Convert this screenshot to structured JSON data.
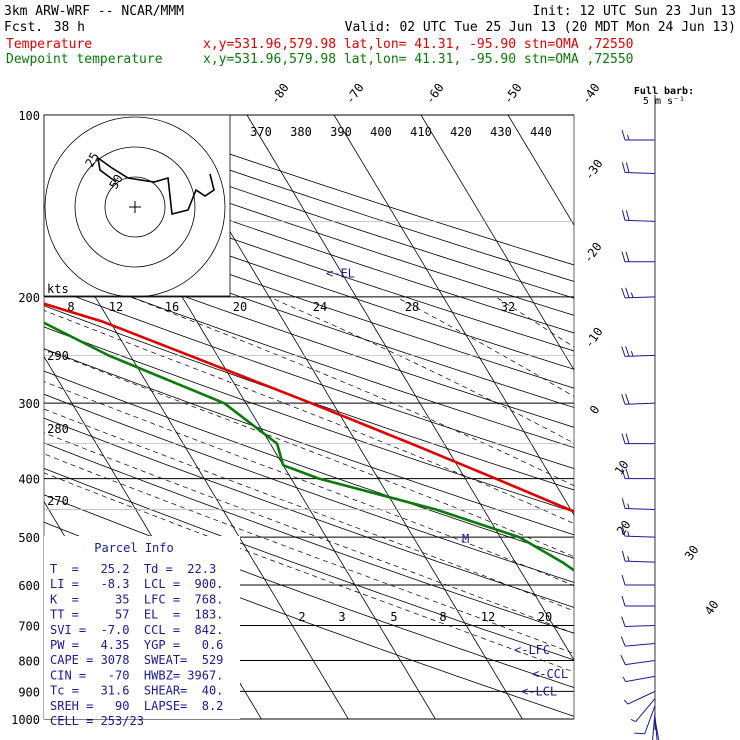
{
  "header": {
    "model": "3km ARW-WRF -- NCAR/MMM",
    "init": "Init: 12 UTC Sun 23 Jun 13",
    "fcst_label": "Fcst.",
    "fcst_value": "38 h",
    "valid": "Valid: 02 UTC Tue 25 Jun 13 (20 MDT Mon 24 Jun 13)",
    "temp_label": "Temperature",
    "dew_label": "Dewpoint temperature",
    "temp_loc": "x,y=531.96,579.98   lat,lon= 41.31, -95.90  stn=OMA ,72550",
    "dew_loc": "x,y=531.96,579.98   lat,lon= 41.31, -95.90  stn=OMA ,72550"
  },
  "parcel": {
    "title": "Parcel Info",
    "rows": [
      "T  =   25.2  Td =  22.3",
      "LI =   -8.3  LCL =  900.",
      "K  =     35  LFC =  768.",
      "TT =     57  EL  =  183.",
      "SVI =  -7.0  CCL =  842.",
      "PW =   4.35  YGP =   0.6",
      "CAPE = 3078  SWEAT=  529",
      "CIN =   -70  HWBZ= 3967.",
      "Tc =   31.6  SHEAR=  40.",
      "SREH =   90  LAPSE=  8.2",
      "CELL = 253/23"
    ]
  },
  "hodograph": {
    "units": "kts",
    "ring_labels": [
      "25",
      "50"
    ]
  },
  "barb_legend": {
    "line1": "Full barb:",
    "line2": "5 m s⁻¹"
  },
  "markers": {
    "el": "<-EL",
    "lfc": "<-LFC",
    "ccl": "<-CCL",
    "lcl": "<-LCL"
  },
  "colors": {
    "temperature": "#e00000",
    "dewpoint": "#0a7a0a",
    "levels": "#1a1a9a"
  },
  "chart_data": {
    "type": "line",
    "y_axis": {
      "label": "",
      "scale": "log",
      "range": [
        1000,
        100
      ],
      "ticks": [
        100,
        200,
        300,
        400,
        500,
        600,
        700,
        800,
        900,
        1000
      ]
    },
    "isotherm_labels": [
      "-80",
      "-70",
      "-60",
      "-50",
      "-40",
      "-30",
      "-20",
      "-10",
      "0",
      "10",
      "20",
      "30",
      "40"
    ],
    "theta_labels": [
      "370",
      "380",
      "390",
      "400",
      "410",
      "420",
      "430",
      "440"
    ],
    "dry_adiabat_labels": [
      "290",
      "280",
      "270"
    ],
    "mixing_ratio_upper_labels": [
      "8",
      "12",
      "16",
      "20",
      "24",
      "28",
      "32"
    ],
    "mixing_ratio_lower_labels": [
      "2",
      "3",
      "5",
      "8",
      "12",
      "20"
    ],
    "series": [
      {
        "name": "Temperature",
        "points": [
          [
            983,
            25.2
          ],
          [
            960,
            24.8
          ],
          [
            925,
            25.4
          ],
          [
            900,
            24.6
          ],
          [
            850,
            22.2
          ],
          [
            800,
            20.6
          ],
          [
            750,
            18.8
          ],
          [
            700,
            15.2
          ],
          [
            650,
            10.8
          ],
          [
            600,
            6.2
          ],
          [
            550,
            1.2
          ],
          [
            500,
            -4.2
          ],
          [
            450,
            -10.2
          ],
          [
            400,
            -16.5
          ],
          [
            350,
            -23.8
          ],
          [
            300,
            -32.5
          ],
          [
            250,
            -43.2
          ],
          [
            220,
            -50.8
          ],
          [
            205,
            -56.5
          ],
          [
            190,
            -59.2
          ],
          [
            170,
            -59.6
          ],
          [
            155,
            -58.8
          ],
          [
            140,
            -60.8
          ],
          [
            125,
            -61.6
          ],
          [
            110,
            -63.5
          ],
          [
            100,
            -64.2
          ]
        ]
      },
      {
        "name": "Dewpoint temperature",
        "points": [
          [
            983,
            22.3
          ],
          [
            960,
            21.6
          ],
          [
            925,
            20.8
          ],
          [
            900,
            20.2
          ],
          [
            850,
            18.4
          ],
          [
            800,
            13.2
          ],
          [
            750,
            1.8
          ],
          [
            700,
            -6.8
          ],
          [
            650,
            -10.2
          ],
          [
            600,
            -12.4
          ],
          [
            550,
            -14.6
          ],
          [
            500,
            -17.8
          ],
          [
            450,
            -25.5
          ],
          [
            400,
            -36.8
          ],
          [
            380,
            -40.0
          ],
          [
            350,
            -39.2
          ],
          [
            300,
            -42.5
          ],
          [
            250,
            -52.5
          ],
          [
            200,
            -61.8
          ],
          [
            170,
            -67.5
          ],
          [
            150,
            -70.5
          ],
          [
            130,
            -74.5
          ],
          [
            115,
            -78.0
          ],
          [
            108,
            -77.5
          ],
          [
            100,
            -75.5
          ]
        ]
      }
    ],
    "levels": {
      "LCL": 900,
      "LFC": 768,
      "CCL": 842,
      "EL": 183
    },
    "wind_barbs": [
      {
        "p": 1000,
        "dir": 170,
        "spd": 6
      },
      {
        "p": 990,
        "dir": 175,
        "spd": 10
      },
      {
        "p": 975,
        "dir": 185,
        "spd": 12
      },
      {
        "p": 950,
        "dir": 200,
        "spd": 8
      },
      {
        "p": 925,
        "dir": 220,
        "spd": 5
      },
      {
        "p": 900,
        "dir": 245,
        "spd": 4
      },
      {
        "p": 850,
        "dir": 260,
        "spd": 7
      },
      {
        "p": 800,
        "dir": 262,
        "spd": 8
      },
      {
        "p": 750,
        "dir": 265,
        "spd": 9
      },
      {
        "p": 700,
        "dir": 268,
        "spd": 10
      },
      {
        "p": 650,
        "dir": 270,
        "spd": 11
      },
      {
        "p": 600,
        "dir": 270,
        "spd": 12
      },
      {
        "p": 550,
        "dir": 272,
        "spd": 13
      },
      {
        "p": 500,
        "dir": 272,
        "spd": 14
      },
      {
        "p": 450,
        "dir": 272,
        "spd": 16
      },
      {
        "p": 400,
        "dir": 270,
        "spd": 18
      },
      {
        "p": 350,
        "dir": 270,
        "spd": 20
      },
      {
        "p": 300,
        "dir": 268,
        "spd": 22
      },
      {
        "p": 250,
        "dir": 268,
        "spd": 25
      },
      {
        "p": 200,
        "dir": 268,
        "spd": 24
      },
      {
        "p": 175,
        "dir": 270,
        "spd": 20
      },
      {
        "p": 150,
        "dir": 272,
        "spd": 18
      },
      {
        "p": 125,
        "dir": 272,
        "spd": 18
      },
      {
        "p": 110,
        "dir": 270,
        "spd": 16
      }
    ]
  }
}
